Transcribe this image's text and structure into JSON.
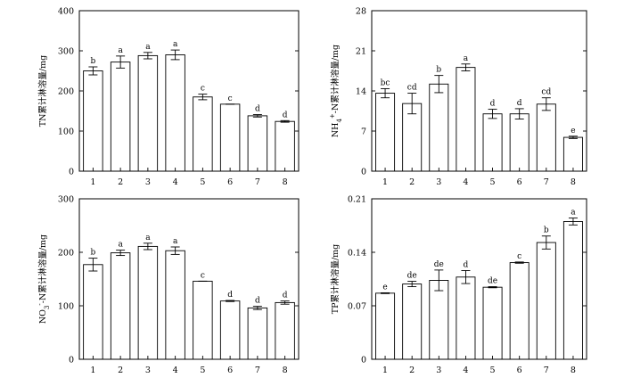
{
  "chart_data": [
    {
      "type": "bar",
      "ylabel": "TN累计淋溶量/mg",
      "categories": [
        "1",
        "2",
        "3",
        "4",
        "5",
        "6",
        "7",
        "8"
      ],
      "values": [
        250,
        272,
        288,
        290,
        185,
        167,
        138,
        124
      ],
      "errors": [
        10,
        15,
        8,
        12,
        7,
        0,
        3,
        2
      ],
      "letters": [
        "b",
        "a",
        "a",
        "a",
        "c",
        "c",
        "d",
        "d"
      ],
      "ylim": [
        0,
        400
      ],
      "yticks": [
        "0",
        "100",
        "200",
        "300",
        "400"
      ]
    },
    {
      "type": "bar",
      "ylabel": "NH4+-N累计淋溶量/mg",
      "ylabel_parts": {
        "main": "NH",
        "sub": "4",
        "sup": "+",
        "rest": "-N累计淋溶量/mg"
      },
      "categories": [
        "1",
        "2",
        "3",
        "4",
        "5",
        "6",
        "7",
        "8"
      ],
      "values": [
        13.6,
        11.8,
        15.2,
        18.1,
        10.0,
        10.0,
        11.7,
        5.9
      ],
      "errors": [
        0.8,
        1.8,
        1.5,
        0.6,
        0.8,
        0.9,
        1.1,
        0.2
      ],
      "letters": [
        "bc",
        "cd",
        "b",
        "a",
        "d",
        "d",
        "cd",
        "e"
      ],
      "ylim": [
        0,
        28
      ],
      "yticks": [
        "0",
        "7",
        "14",
        "21",
        "28"
      ]
    },
    {
      "type": "bar",
      "ylabel": "NO3--N累计淋溶量/mg",
      "ylabel_parts": {
        "main": "NO",
        "sub": "3",
        "sup": "-",
        "rest": "-N累计淋溶量/mg"
      },
      "categories": [
        "1",
        "2",
        "3",
        "4",
        "5",
        "6",
        "7",
        "8"
      ],
      "values": [
        177,
        199,
        211,
        203,
        146,
        109,
        96,
        106
      ],
      "errors": [
        12,
        5,
        6,
        7,
        0,
        1,
        3,
        3
      ],
      "letters": [
        "b",
        "a",
        "a",
        "a",
        "c",
        "d",
        "d",
        "d"
      ],
      "ylim": [
        0,
        300
      ],
      "yticks": [
        "0",
        "100",
        "200",
        "300"
      ]
    },
    {
      "type": "bar",
      "ylabel": "TP累计淋溶量/mg",
      "categories": [
        "1",
        "2",
        "3",
        "4",
        "5",
        "6",
        "7",
        "8"
      ],
      "values": [
        0.0865,
        0.0985,
        0.1033,
        0.1076,
        0.0943,
        0.1265,
        0.1528,
        0.1803
      ],
      "errors": [
        0.0005,
        0.0035,
        0.0135,
        0.0085,
        0.0007,
        0.0008,
        0.0085,
        0.0045
      ],
      "letters": [
        "e",
        "de",
        "de",
        "d",
        "de",
        "c",
        "b",
        "a"
      ],
      "ylim": [
        0,
        0.21
      ],
      "yticks": [
        "0",
        "0.07",
        "0.14",
        "0.21"
      ]
    }
  ]
}
